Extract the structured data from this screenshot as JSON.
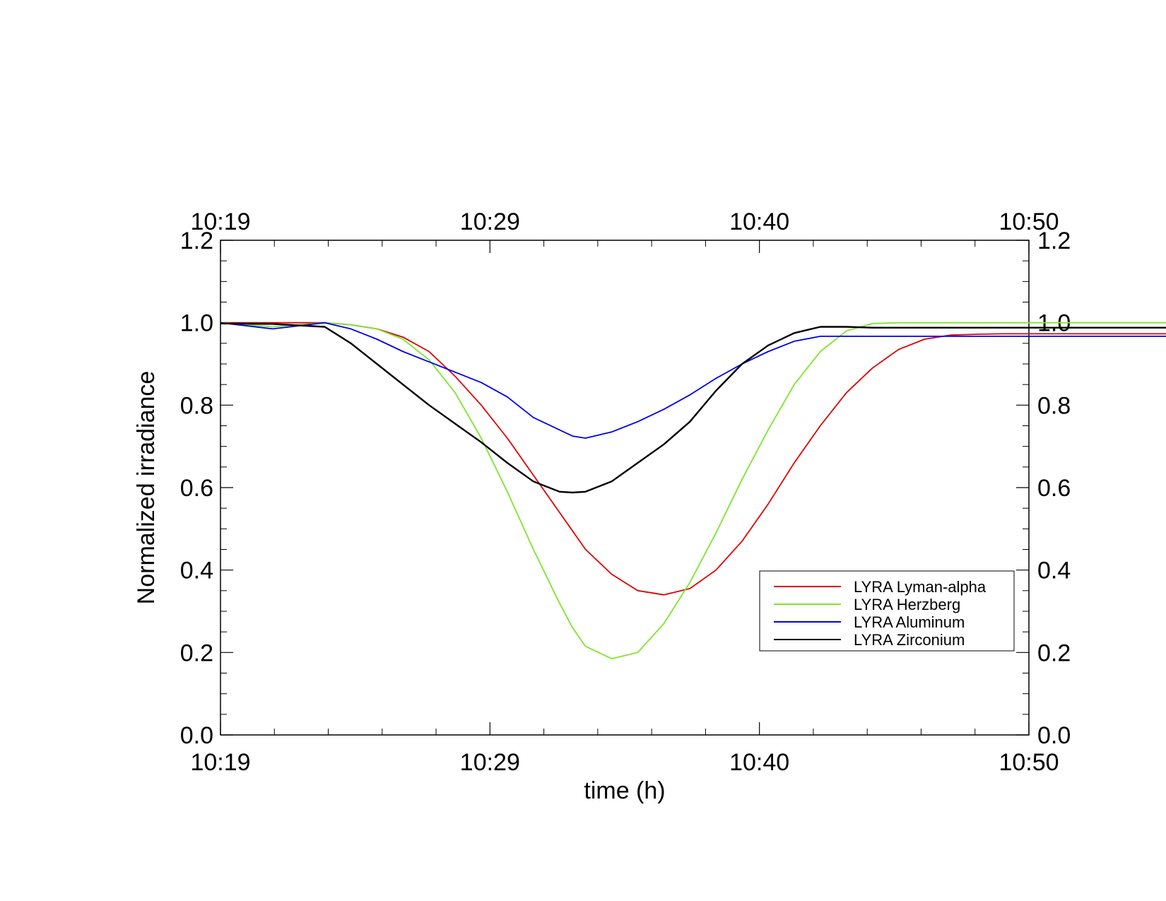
{
  "chart_data": {
    "type": "line",
    "title": "",
    "xlabel": "time (h)",
    "ylabel": "Normalized irradiance",
    "xlim": [
      "10:19",
      "10:50"
    ],
    "ylim": [
      0.0,
      1.2
    ],
    "x_tick_labels": [
      "10:19",
      "10:29",
      "10:40",
      "10:50"
    ],
    "y_tick_labels": [
      "0.0",
      "0.2",
      "0.4",
      "0.6",
      "0.8",
      "1.0",
      "1.2"
    ],
    "x_unit": "minutes after 10:19",
    "grid": false,
    "legend_position": "lower-right",
    "series": [
      {
        "name": "LYRA Lyman-alpha",
        "color": "#e00000",
        "x": [
          0,
          2.0,
          4.0,
          5.0,
          6.0,
          7.0,
          8.0,
          9.0,
          10.0,
          11.0,
          12.0,
          13.0,
          13.5,
          14.0,
          15.0,
          16.0,
          17.0,
          18.0,
          19.0,
          20.0,
          21.0,
          22.0,
          23.0,
          24.0,
          25.0,
          26.0,
          27.0,
          28.0,
          29.0,
          30.0,
          31.0,
          32.0,
          33.0,
          34.0,
          35.0,
          36.5,
          38.0,
          39.0,
          40.5
        ],
        "y": [
          1.0,
          1.0,
          1.0,
          0.995,
          0.985,
          0.965,
          0.93,
          0.87,
          0.8,
          0.72,
          0.63,
          0.54,
          0.495,
          0.45,
          0.39,
          0.35,
          0.34,
          0.355,
          0.4,
          0.47,
          0.56,
          0.66,
          0.75,
          0.83,
          0.89,
          0.935,
          0.96,
          0.97,
          0.972,
          0.973,
          0.973,
          0.973,
          0.973,
          0.973,
          0.973,
          0.973,
          0.973,
          0.973,
          0.973
        ]
      },
      {
        "name": "LYRA Herzberg",
        "color": "#7ee62e",
        "x": [
          0,
          2.0,
          4.0,
          5.0,
          6.0,
          7.0,
          8.0,
          9.0,
          10.0,
          11.0,
          12.0,
          13.0,
          13.5,
          14.0,
          15.0,
          16.0,
          17.0,
          18.0,
          19.0,
          20.0,
          21.0,
          22.0,
          23.0,
          24.0,
          25.0,
          26.0,
          27.0,
          28.0,
          29.0,
          30.0,
          31.0,
          32.0,
          33.0,
          34.0,
          35.0,
          36.5,
          38.0,
          39.0,
          40.5
        ],
        "y": [
          1.0,
          0.99,
          1.0,
          0.995,
          0.985,
          0.96,
          0.91,
          0.83,
          0.72,
          0.59,
          0.45,
          0.32,
          0.26,
          0.215,
          0.185,
          0.2,
          0.27,
          0.37,
          0.49,
          0.62,
          0.74,
          0.85,
          0.93,
          0.98,
          0.998,
          1.0,
          1.0,
          1.0,
          1.0,
          1.0,
          1.0,
          1.0,
          1.0,
          1.0,
          1.0,
          1.0,
          1.0,
          1.0,
          1.0
        ]
      },
      {
        "name": "LYRA Aluminum",
        "color": "#0000ee",
        "x": [
          0,
          2.0,
          4.0,
          5.0,
          6.0,
          7.0,
          8.0,
          9.0,
          10.0,
          11.0,
          12.0,
          13.0,
          13.5,
          14.0,
          15.0,
          16.0,
          17.0,
          18.0,
          19.0,
          20.0,
          21.0,
          22.0,
          23.0,
          24.0,
          25.0,
          26.0,
          27.0,
          28.0,
          29.0,
          30.0,
          31.0,
          32.0,
          33.0,
          34.0,
          35.0,
          36.5,
          38.0,
          39.0,
          40.5
        ],
        "y": [
          1.0,
          0.985,
          1.0,
          0.985,
          0.96,
          0.93,
          0.905,
          0.88,
          0.855,
          0.82,
          0.77,
          0.74,
          0.725,
          0.72,
          0.735,
          0.76,
          0.79,
          0.825,
          0.865,
          0.9,
          0.93,
          0.955,
          0.967,
          0.967,
          0.967,
          0.967,
          0.967,
          0.967,
          0.967,
          0.967,
          0.967,
          0.967,
          0.967,
          0.967,
          0.967,
          0.967,
          0.967,
          0.967,
          0.967
        ]
      },
      {
        "name": "LYRA Zirconium",
        "color": "#000000",
        "x": [
          0,
          2.0,
          4.0,
          5.0,
          6.0,
          7.0,
          8.0,
          9.0,
          10.0,
          11.0,
          12.0,
          13.0,
          13.5,
          14.0,
          15.0,
          16.0,
          17.0,
          18.0,
          19.0,
          20.0,
          21.0,
          22.0,
          23.0,
          24.0,
          25.0,
          26.0,
          27.0,
          28.0,
          29.0,
          30.0,
          31.0,
          32.0,
          33.0,
          34.0,
          35.0,
          36.5,
          38.0,
          39.0,
          40.5
        ],
        "y": [
          0.998,
          0.997,
          0.99,
          0.95,
          0.9,
          0.85,
          0.8,
          0.755,
          0.71,
          0.66,
          0.615,
          0.59,
          0.588,
          0.59,
          0.615,
          0.66,
          0.705,
          0.76,
          0.835,
          0.9,
          0.945,
          0.975,
          0.99,
          0.99,
          0.988,
          0.988,
          0.988,
          0.988,
          0.988,
          0.988,
          0.988,
          0.988,
          0.988,
          0.988,
          0.988,
          0.988,
          0.988,
          0.988,
          0.988
        ]
      }
    ]
  }
}
